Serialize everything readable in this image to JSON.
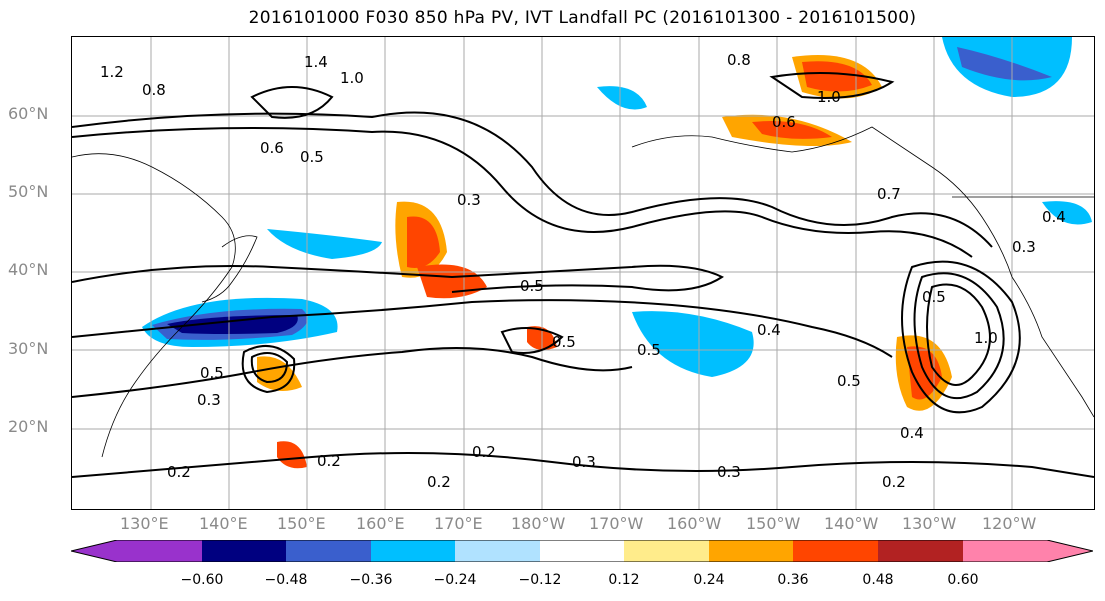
{
  "title": "2016101000 F030 850 hPa PV, IVT Landfall PC (2016101300 - 2016101500)",
  "lat_labels": [
    "60°N",
    "50°N",
    "40°N",
    "30°N",
    "20°N"
  ],
  "lon_labels": [
    "130°E",
    "140°E",
    "150°E",
    "160°E",
    "170°E",
    "180°W",
    "170°W",
    "160°W",
    "150°W",
    "140°W",
    "130°W",
    "120°W"
  ],
  "colorbar": {
    "ticks": [
      "−0.60",
      "−0.48",
      "−0.36",
      "−0.24",
      "−0.12",
      "0.12",
      "0.24",
      "0.36",
      "0.48",
      "0.60"
    ],
    "colors": [
      "#9932cc",
      "#000080",
      "#3a5fcd",
      "#00bfff",
      "#b0e2ff",
      "#ffffff",
      "#ffec8b",
      "#ffa500",
      "#ff4500",
      "#b22222",
      "#ff82ab"
    ]
  },
  "contour_labels": [
    "1.4",
    "1.0",
    "1.2",
    "0.8",
    "0.5",
    "0.6",
    "0.5",
    "0.3",
    "0.5",
    "0.5",
    "0.4",
    "0.5",
    "0.5",
    "0.3",
    "0.2",
    "0.2",
    "0.3",
    "0.2",
    "0.3",
    "0.2",
    "0.4",
    "0.2",
    "0.7",
    "1.0",
    "1.0",
    "0.6",
    "0.8",
    "0.4",
    "0.5",
    "0.3"
  ]
}
